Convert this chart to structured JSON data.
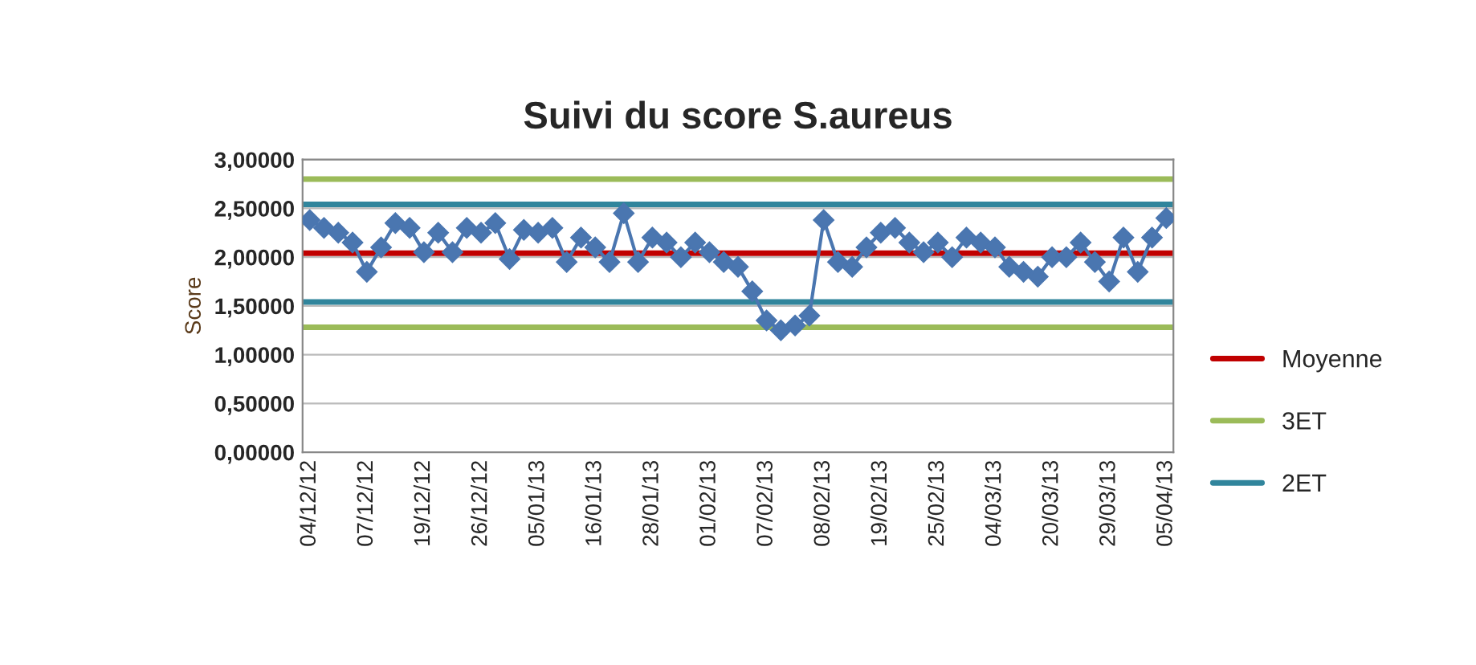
{
  "chart_data": {
    "type": "line",
    "title": "Suivi du score S.aureus",
    "ylabel": "Score",
    "categories": [
      "04/12/12",
      null,
      null,
      null,
      "07/12/12",
      null,
      null,
      null,
      "19/12/12",
      null,
      null,
      null,
      "26/12/12",
      null,
      null,
      null,
      "05/01/13",
      null,
      null,
      null,
      "16/01/13",
      null,
      null,
      null,
      "28/01/13",
      null,
      null,
      null,
      "01/02/13",
      null,
      null,
      null,
      "07/02/13",
      null,
      null,
      null,
      "08/02/13",
      null,
      null,
      null,
      "19/02/13",
      null,
      null,
      null,
      "25/02/13",
      null,
      null,
      null,
      "04/03/13",
      null,
      null,
      null,
      "20/03/13",
      null,
      null,
      null,
      "29/03/13",
      null,
      null,
      null,
      "05/04/13"
    ],
    "series": [
      {
        "color": "#4a76b0",
        "values": [
          2.38,
          2.3,
          2.25,
          2.15,
          1.85,
          2.1,
          2.35,
          2.3,
          2.05,
          2.25,
          2.05,
          2.3,
          2.25,
          2.35,
          1.98,
          2.28,
          2.25,
          2.3,
          1.95,
          2.2,
          2.1,
          1.95,
          2.45,
          1.95,
          2.2,
          2.15,
          2.0,
          2.15,
          2.05,
          1.95,
          1.9,
          1.65,
          1.35,
          1.25,
          1.3,
          1.4,
          2.38,
          1.95,
          1.9,
          2.1,
          2.25,
          2.3,
          2.15,
          2.05,
          2.15,
          2.0,
          2.2,
          2.15,
          2.1,
          1.9,
          1.85,
          1.8,
          2.0,
          2.0,
          2.15,
          1.95,
          1.75,
          2.2,
          1.85,
          2.2,
          2.4
        ]
      }
    ],
    "marker": "diamond",
    "line_style": "solid",
    "ylim": [
      0,
      3
    ],
    "yticks": [
      {
        "value": 0,
        "label": "0,00000"
      },
      {
        "value": 0.5,
        "label": "0,50000"
      },
      {
        "value": 1,
        "label": "1,00000"
      },
      {
        "value": 1.5,
        "label": "1,50000"
      },
      {
        "value": 2,
        "label": "2,00000"
      },
      {
        "value": 2.5,
        "label": "2,50000"
      },
      {
        "value": 3,
        "label": "3,00000"
      }
    ],
    "grid": "y",
    "legend": "right",
    "ref_lines": [
      {
        "axis": "y",
        "value": 2.04,
        "label": "Moyenne",
        "color": "#c00000"
      },
      {
        "axis": "y",
        "value": 2.8,
        "label": "3ET",
        "color": "#9bbb59"
      },
      {
        "axis": "y",
        "value": 1.28,
        "color": "#9bbb59"
      },
      {
        "axis": "y",
        "value": 2.54,
        "label": "2ET",
        "color": "#31859c"
      },
      {
        "axis": "y",
        "value": 1.54,
        "color": "#31859c"
      }
    ]
  }
}
